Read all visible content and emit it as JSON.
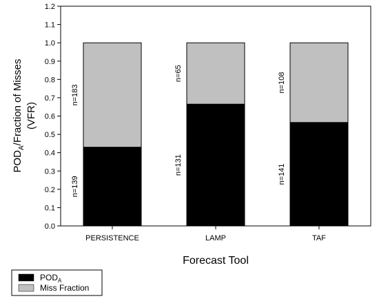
{
  "chart_data": {
    "type": "bar",
    "stacked": true,
    "xlabel": "Forecast Tool",
    "ylabel": {
      "prefix": "POD",
      "sub": "A",
      "suffix": "/Fraction of Misses",
      "line2": "(VFR)"
    },
    "ylim": [
      0,
      1.2
    ],
    "ytick_step": 0.1,
    "grid": false,
    "legend_placement": "bottom-left",
    "categories": [
      "PERSISTENCE",
      "LAMP",
      "TAF"
    ],
    "series": [
      {
        "name": "POD",
        "name_sub": "A",
        "color": "#000000",
        "values": [
          0.43,
          0.665,
          0.565
        ],
        "annotations": [
          "n=139",
          "n=131",
          "n=141"
        ]
      },
      {
        "name": "Miss Fraction",
        "color": "#c0c0c0",
        "values": [
          0.57,
          0.335,
          0.435
        ],
        "annotations": [
          "n=183",
          "n=65",
          "n=108"
        ]
      }
    ]
  }
}
